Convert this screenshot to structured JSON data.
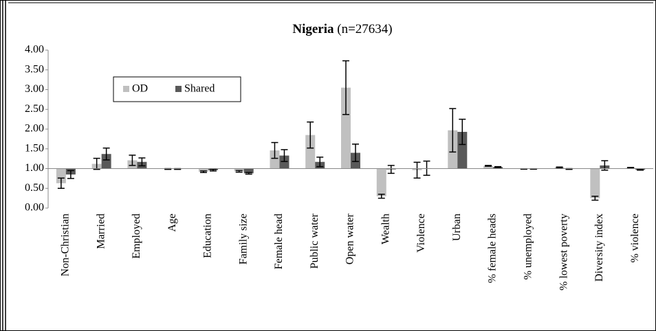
{
  "chart_data": {
    "type": "bar",
    "title": "Nigeria",
    "subtitle": "(n=27634)",
    "categories": [
      "Non-Christian",
      "Married",
      "Employed",
      "Age",
      "Education",
      "Family size",
      "Female head",
      "Public water",
      "Open water",
      "Wealth",
      "Violence",
      "Urban",
      "% female heads",
      "% unemployed",
      "% lowest poverty",
      "Diversity index",
      "% violence"
    ],
    "series": [
      {
        "name": "OD",
        "color": "#c0c0c0",
        "values": [
          0.63,
          1.12,
          1.21,
          0.99,
          0.92,
          0.93,
          1.46,
          1.85,
          3.05,
          0.3,
          0.96,
          1.97,
          1.07,
          0.99,
          1.03,
          0.25,
          1.02
        ],
        "errors": [
          0.13,
          0.14,
          0.13,
          0.01,
          0.02,
          0.02,
          0.2,
          0.33,
          0.68,
          0.05,
          0.2,
          0.55,
          0.01,
          0.005,
          0.01,
          0.05,
          0.01
        ]
      },
      {
        "name": "Shared",
        "color": "#595959",
        "values": [
          0.85,
          1.37,
          1.17,
          0.99,
          0.96,
          0.88,
          1.33,
          1.17,
          1.4,
          0.98,
          1.01,
          1.93,
          1.04,
          0.99,
          0.99,
          1.08,
          0.97
        ],
        "errors": [
          0.1,
          0.15,
          0.1,
          0.01,
          0.02,
          0.02,
          0.15,
          0.12,
          0.22,
          0.1,
          0.18,
          0.32,
          0.01,
          0.005,
          0.01,
          0.12,
          0.01
        ]
      }
    ],
    "baseline": 1,
    "ylim": [
      0,
      4
    ],
    "yticks": [
      {
        "value": 0,
        "label": "0.00"
      },
      {
        "value": 0.5,
        "label": "0.50"
      },
      {
        "value": 1,
        "label": "1.00"
      },
      {
        "value": 1.5,
        "label": "1.50"
      },
      {
        "value": 2,
        "label": "2.00"
      },
      {
        "value": 2.5,
        "label": "2.50"
      },
      {
        "value": 3,
        "label": "3.00"
      },
      {
        "value": 3.5,
        "label": "3.50"
      },
      {
        "value": 4,
        "label": "4.00"
      }
    ],
    "legend": "upper left",
    "grid": false
  }
}
